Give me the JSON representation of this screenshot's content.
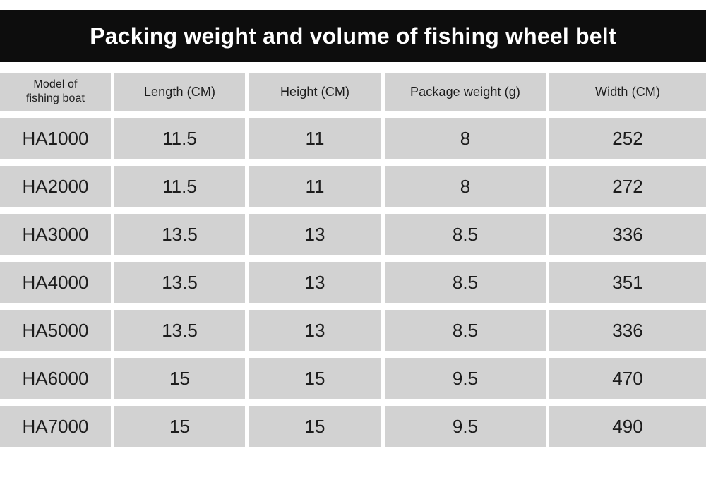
{
  "title_bar": {
    "text": "Packing weight and volume of fishing wheel belt",
    "background": "#0d0d0d",
    "text_color": "#ffffff"
  },
  "table": {
    "cell_background": "#d2d2d2",
    "text_color": "#1c1c1c",
    "columns": [
      "Model of\nfishing boat",
      "Length (CM)",
      "Height (CM)",
      "Package weight (g)",
      "Width (CM)"
    ],
    "rows": [
      [
        "HA1000",
        "11.5",
        "11",
        "8",
        "252"
      ],
      [
        "HA2000",
        "11.5",
        "11",
        "8",
        "272"
      ],
      [
        "HA3000",
        "13.5",
        "13",
        "8.5",
        "336"
      ],
      [
        "HA4000",
        "13.5",
        "13",
        "8.5",
        "351"
      ],
      [
        "HA5000",
        "13.5",
        "13",
        "8.5",
        "336"
      ],
      [
        "HA6000",
        "15",
        "15",
        "9.5",
        "470"
      ],
      [
        "HA7000",
        "15",
        "15",
        "9.5",
        "490"
      ]
    ]
  }
}
